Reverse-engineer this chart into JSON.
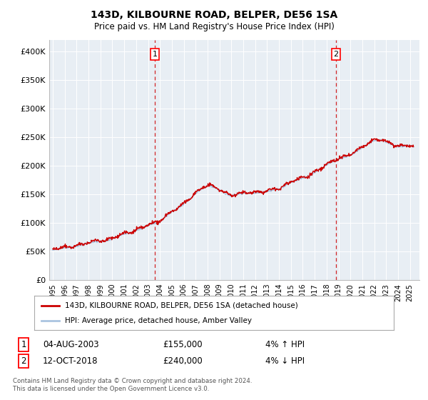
{
  "title": "143D, KILBOURNE ROAD, BELPER, DE56 1SA",
  "subtitle": "Price paid vs. HM Land Registry's House Price Index (HPI)",
  "ylabel_ticks": [
    "£0",
    "£50K",
    "£100K",
    "£150K",
    "£200K",
    "£250K",
    "£300K",
    "£350K",
    "£400K"
  ],
  "ytick_values": [
    0,
    50000,
    100000,
    150000,
    200000,
    250000,
    300000,
    350000,
    400000
  ],
  "ylim": [
    0,
    420000
  ],
  "hpi_color": "#aac4e0",
  "price_color": "#cc0000",
  "marker1_x": 2003.58,
  "marker2_x": 2018.78,
  "legend_entry1": "143D, KILBOURNE ROAD, BELPER, DE56 1SA (detached house)",
  "legend_entry2": "HPI: Average price, detached house, Amber Valley",
  "table_row1_num": "1",
  "table_row1_date": "04-AUG-2003",
  "table_row1_price": "£155,000",
  "table_row1_hpi": "4% ↑ HPI",
  "table_row2_num": "2",
  "table_row2_date": "12-OCT-2018",
  "table_row2_price": "£240,000",
  "table_row2_hpi": "4% ↓ HPI",
  "footnote": "Contains HM Land Registry data © Crown copyright and database right 2024.\nThis data is licensed under the Open Government Licence v3.0.",
  "bg_color": "#ffffff",
  "plot_bg_color": "#e8eef4"
}
